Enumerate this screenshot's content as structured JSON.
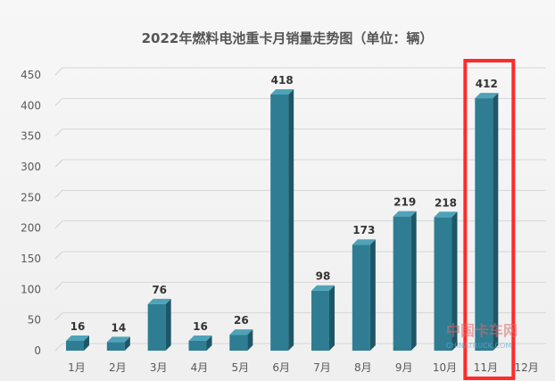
{
  "chart_data": {
    "type": "bar",
    "title": "2022年燃料电池重卡月销量走势图（单位：辆）",
    "categories": [
      "1月",
      "2月",
      "3月",
      "4月",
      "5月",
      "6月",
      "7月",
      "8月",
      "9月",
      "10月",
      "11月",
      "12月"
    ],
    "values": [
      16,
      14,
      76,
      16,
      26,
      418,
      98,
      173,
      219,
      218,
      412,
      null
    ],
    "data_labels": [
      "16",
      "14",
      "76",
      "16",
      "26",
      "418",
      "98",
      "173",
      "219",
      "218",
      "412",
      ""
    ],
    "yticks": [
      "0",
      "50",
      "100",
      "150",
      "200",
      "250",
      "300",
      "350",
      "400",
      "450"
    ],
    "ylim": [
      0,
      450
    ],
    "xlabel": "",
    "ylabel": "",
    "grid": true,
    "legend": "none",
    "bar_color": "#2e7d93",
    "bar_side_color": "#1d5767",
    "bar_top_color": "#4fa3b8",
    "highlight": {
      "category": "11月",
      "color": "#ff2a2a"
    }
  },
  "watermark": {
    "text": "中国卡车网",
    "sub": "CHINATRUCK.COM"
  }
}
